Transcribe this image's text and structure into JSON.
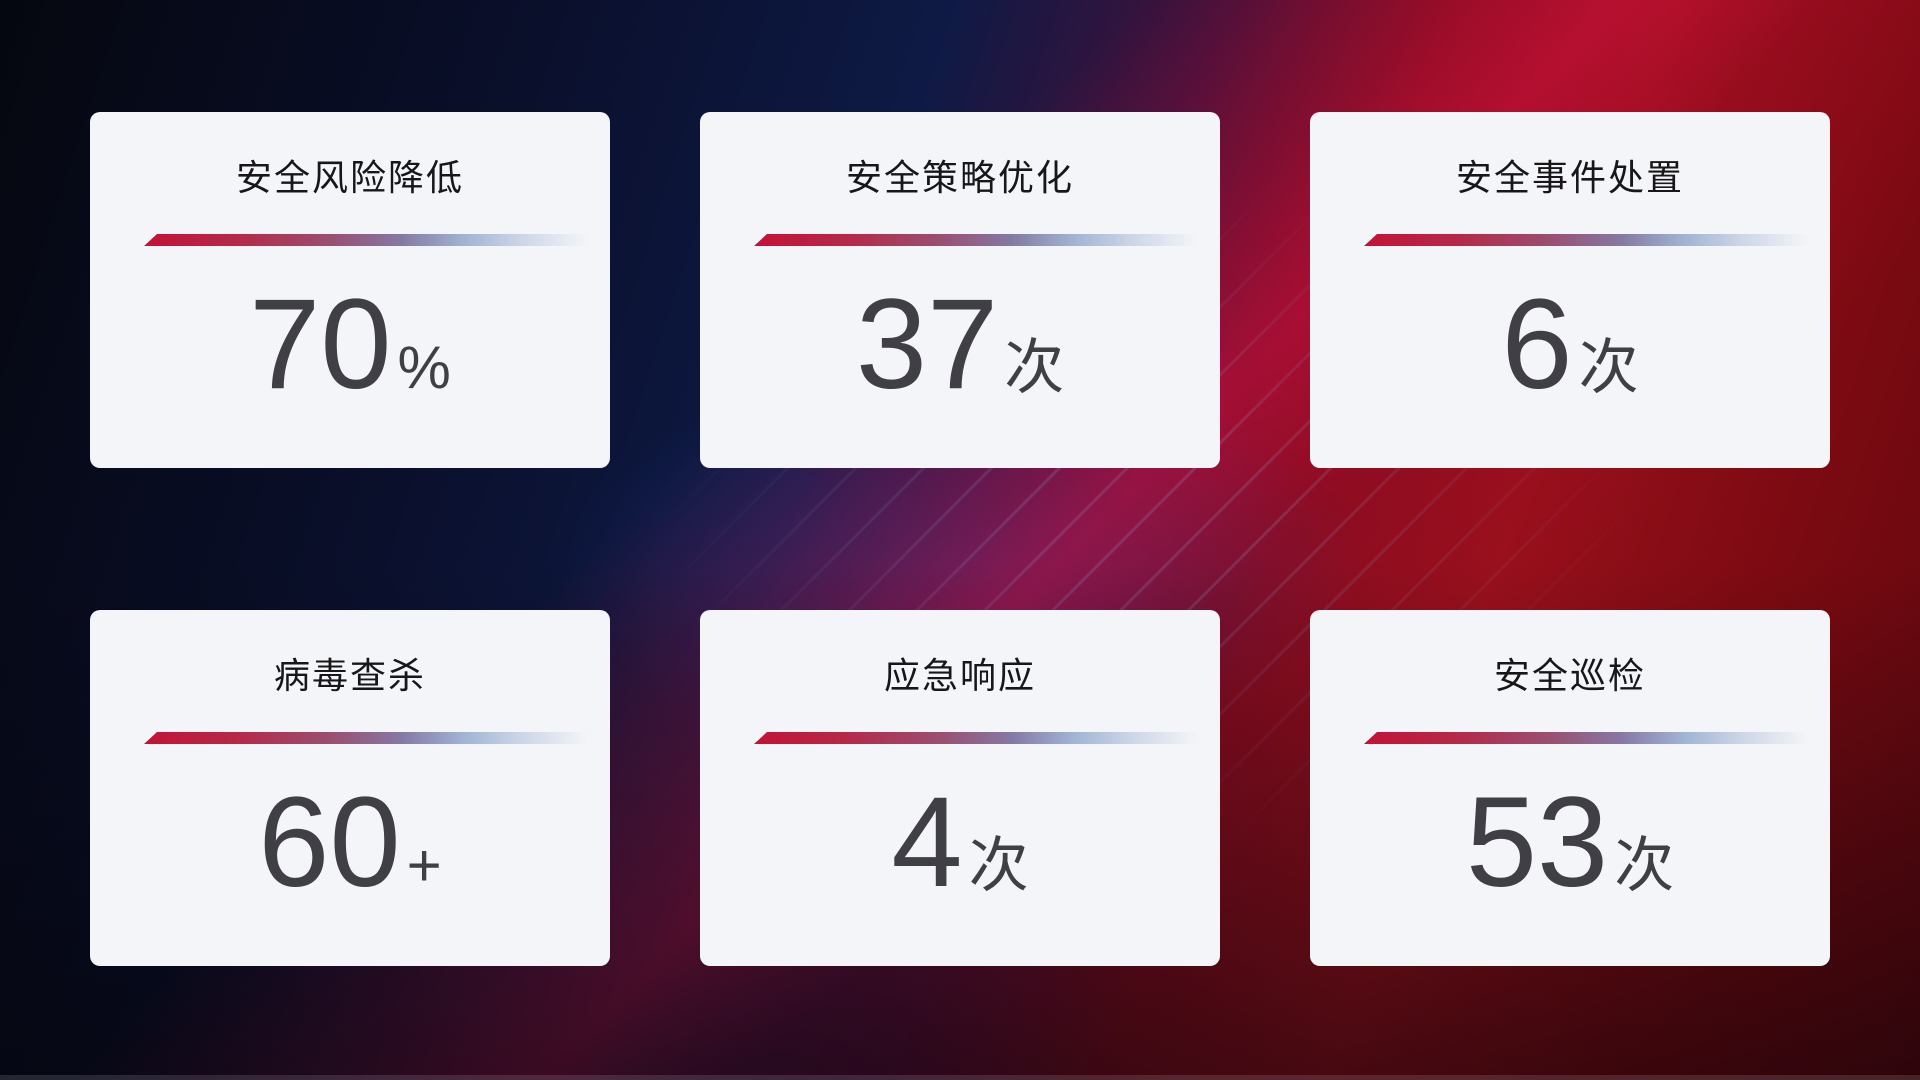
{
  "cards": [
    {
      "title": "安全风险降低",
      "value": "70",
      "unit": "%"
    },
    {
      "title": "安全策略优化",
      "value": "37",
      "unit": "次"
    },
    {
      "title": "安全事件处置",
      "value": "6",
      "unit": "次"
    },
    {
      "title": "病毒查杀",
      "value": "60",
      "unit": "+"
    },
    {
      "title": "应急响应",
      "value": "4",
      "unit": "次"
    },
    {
      "title": "安全巡检",
      "value": "53",
      "unit": "次"
    }
  ],
  "colors": {
    "card_background": "#f4f5f8",
    "title_text": "#17171a",
    "value_text": "#3f3f45",
    "divider_red": "#c31236",
    "divider_blue": "#a0b4d4",
    "background_navy": "#0e1a45",
    "background_red": "#98101b"
  }
}
